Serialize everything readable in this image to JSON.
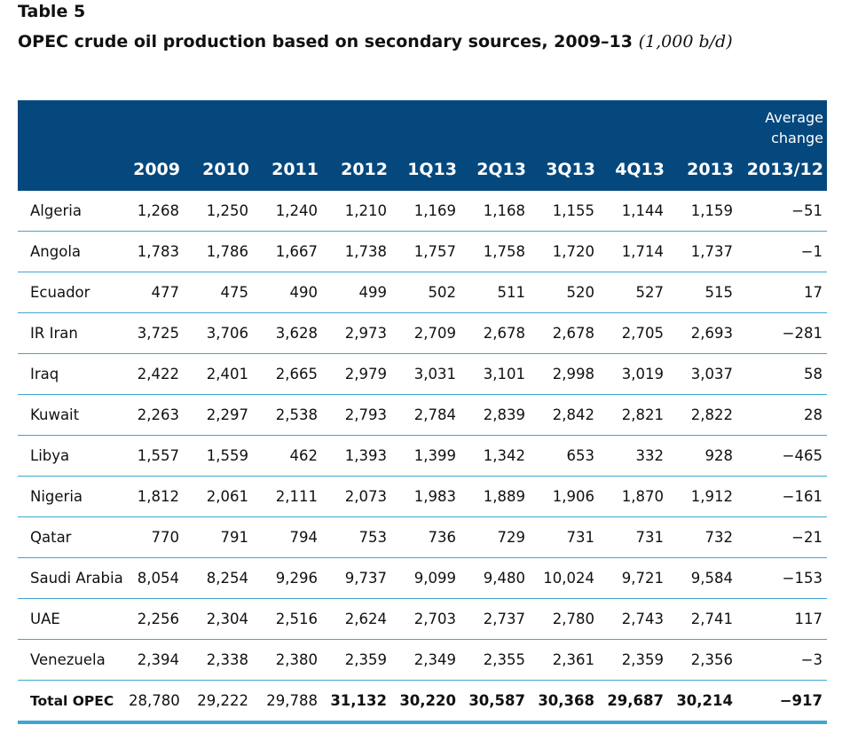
{
  "table_label": "Table 5",
  "caption": {
    "title": "OPEC crude oil production based on secondary sources, 2009–13",
    "unit": "(1,000 b/d)"
  },
  "header": {
    "avg_change_line1": "Average",
    "avg_change_line2": "change",
    "columns": [
      "2009",
      "2010",
      "2011",
      "2012",
      "1Q13",
      "2Q13",
      "3Q13",
      "4Q13",
      "2013",
      "2013/12"
    ]
  },
  "rows": [
    {
      "country": "Algeria",
      "values": [
        "1,268",
        "1,250",
        "1,240",
        "1,210",
        "1,169",
        "1,168",
        "1,155",
        "1,144",
        "1,159",
        "−51"
      ]
    },
    {
      "country": "Angola",
      "values": [
        "1,783",
        "1,786",
        "1,667",
        "1,738",
        "1,757",
        "1,758",
        "1,720",
        "1,714",
        "1,737",
        "−1"
      ]
    },
    {
      "country": "Ecuador",
      "values": [
        "477",
        "475",
        "490",
        "499",
        "502",
        "511",
        "520",
        "527",
        "515",
        "17"
      ]
    },
    {
      "country": "IR Iran",
      "values": [
        "3,725",
        "3,706",
        "3,628",
        "2,973",
        "2,709",
        "2,678",
        "2,678",
        "2,705",
        "2,693",
        "−281"
      ]
    },
    {
      "country": "Iraq",
      "values": [
        "2,422",
        "2,401",
        "2,665",
        "2,979",
        "3,031",
        "3,101",
        "2,998",
        "3,019",
        "3,037",
        "58"
      ]
    },
    {
      "country": "Kuwait",
      "values": [
        "2,263",
        "2,297",
        "2,538",
        "2,793",
        "2,784",
        "2,839",
        "2,842",
        "2,821",
        "2,822",
        "28"
      ]
    },
    {
      "country": "Libya",
      "values": [
        "1,557",
        "1,559",
        "462",
        "1,393",
        "1,399",
        "1,342",
        "653",
        "332",
        "928",
        "−465"
      ]
    },
    {
      "country": "Nigeria",
      "values": [
        "1,812",
        "2,061",
        "2,111",
        "2,073",
        "1,983",
        "1,889",
        "1,906",
        "1,870",
        "1,912",
        "−161"
      ]
    },
    {
      "country": "Qatar",
      "values": [
        "770",
        "791",
        "794",
        "753",
        "736",
        "729",
        "731",
        "731",
        "732",
        "−21"
      ]
    },
    {
      "country": "Saudi Arabia",
      "values": [
        "8,054",
        "8,254",
        "9,296",
        "9,737",
        "9,099",
        "9,480",
        "10,024",
        "9,721",
        "9,584",
        "−153"
      ]
    },
    {
      "country": "UAE",
      "values": [
        "2,256",
        "2,304",
        "2,516",
        "2,624",
        "2,703",
        "2,737",
        "2,780",
        "2,743",
        "2,741",
        "117"
      ]
    },
    {
      "country": "Venezuela",
      "values": [
        "2,394",
        "2,338",
        "2,380",
        "2,359",
        "2,349",
        "2,355",
        "2,361",
        "2,359",
        "2,356",
        "−3"
      ]
    }
  ],
  "total": {
    "country": "Total OPEC",
    "values": [
      "28,780",
      "29,222",
      "29,788",
      "31,132",
      "30,220",
      "30,587",
      "30,368",
      "29,687",
      "30,214",
      "−917"
    ]
  }
}
